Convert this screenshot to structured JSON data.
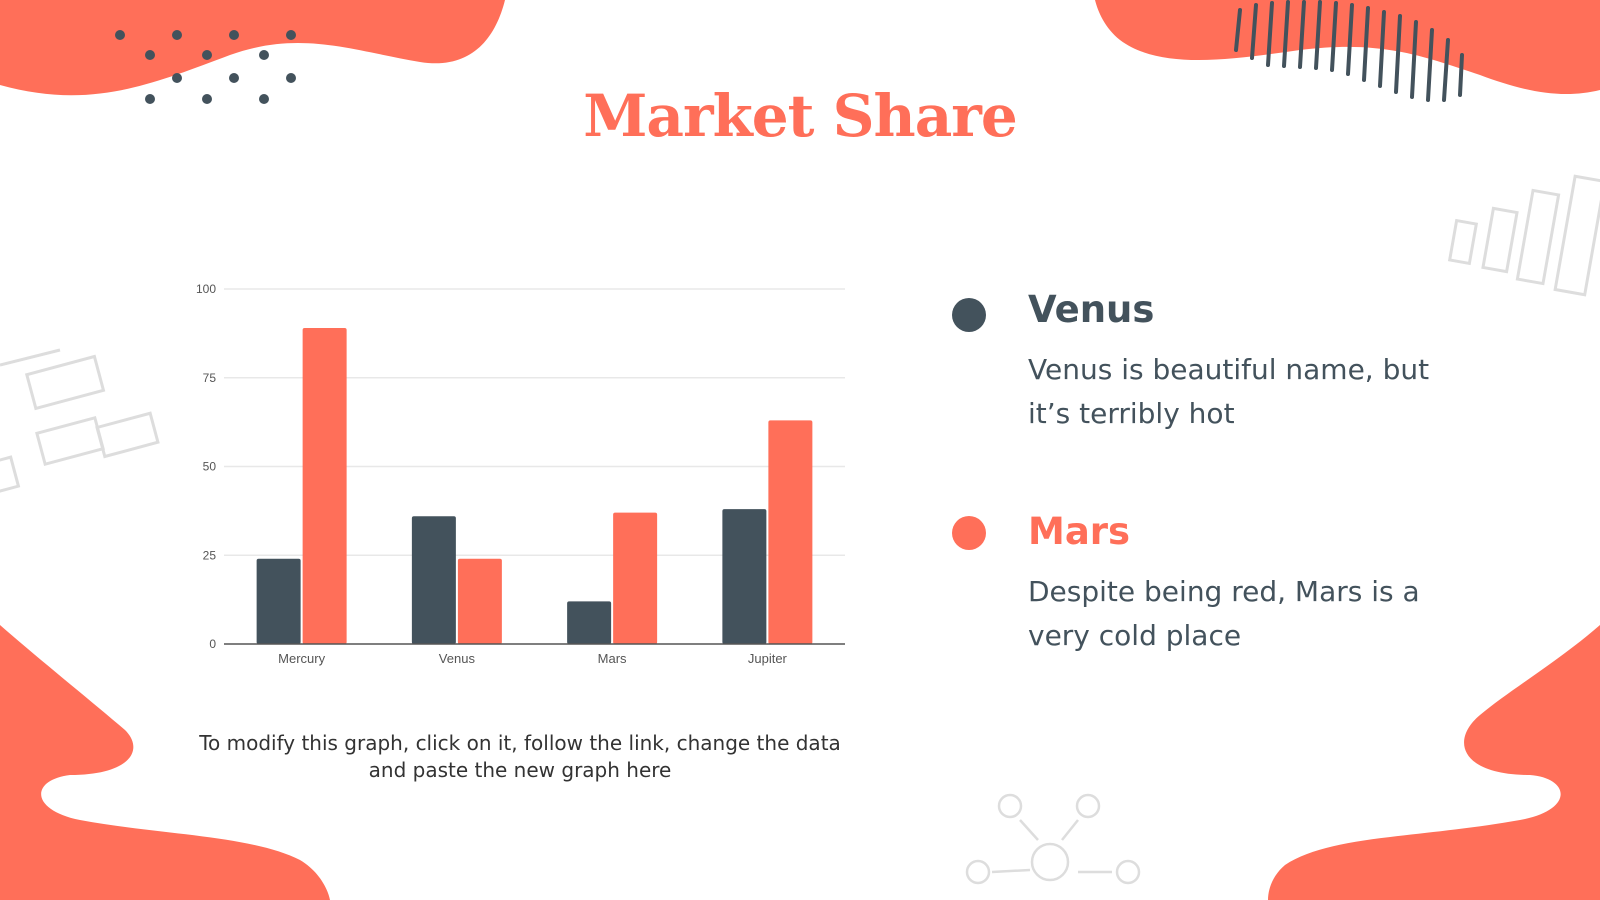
{
  "title": "Market Share",
  "note": "To modify this graph, click on it, follow the link, change the data and paste the new graph here",
  "legend": [
    {
      "name": "Venus",
      "description": "Venus is beautiful name, but it’s terribly hot",
      "color": "#43525c"
    },
    {
      "name": "Mars",
      "description": "Despite being red, Mars is a very cold place",
      "color": "#ff6f59"
    }
  ],
  "colors": {
    "accent": "#ff6f59",
    "dark": "#43525c"
  },
  "chart_data": {
    "type": "bar",
    "categories": [
      "Mercury",
      "Venus",
      "Mars",
      "Jupiter"
    ],
    "series": [
      {
        "name": "Venus",
        "color": "#43525c",
        "values": [
          24,
          36,
          12,
          38
        ]
      },
      {
        "name": "Mars",
        "color": "#ff6f59",
        "values": [
          89,
          24,
          37,
          63
        ]
      }
    ],
    "ylim": [
      0,
      100
    ],
    "yticks": [
      0,
      25,
      50,
      75,
      100
    ],
    "grid": true,
    "title": "",
    "xlabel": "",
    "ylabel": ""
  }
}
